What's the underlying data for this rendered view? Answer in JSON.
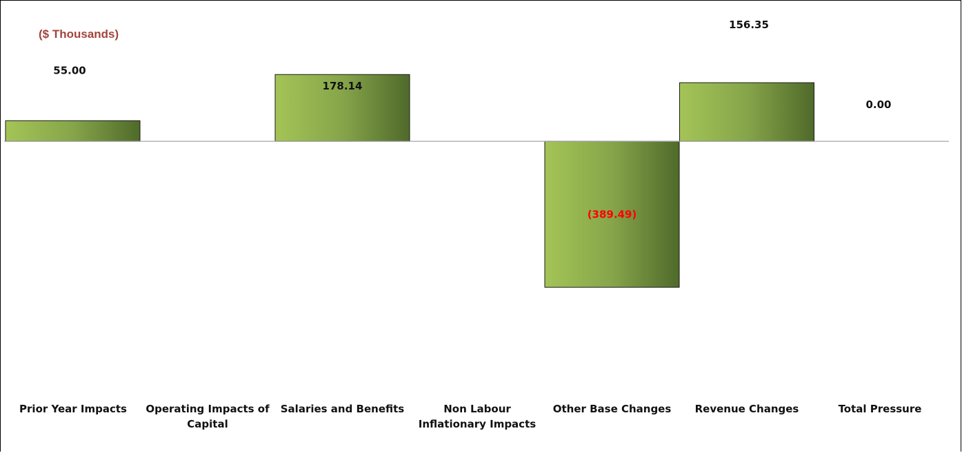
{
  "chart_data": {
    "type": "bar",
    "unit_label": "($ Thousands)",
    "categories": [
      "Prior Year Impacts",
      "Operating Impacts of Capital",
      "Salaries and Benefits",
      "Non Labour Inflationary Impacts",
      "Other Base Changes",
      "Revenue Changes",
      "Total Pressure"
    ],
    "values": [
      55.0,
      0,
      178.14,
      0,
      -389.49,
      156.35,
      0.0
    ],
    "data_labels": [
      "55.00",
      "",
      "178.14",
      "",
      "(389.49)",
      "156.35",
      "0.00"
    ],
    "ylim": [
      -580,
      320
    ],
    "grid": false,
    "legend": "none",
    "colors": {
      "bar_light": "#a4c457",
      "bar_dark": "#4f6a2a",
      "axis": "#a6a6a6",
      "unit_label": "#a0443c",
      "negative_label": "#ff0000"
    }
  }
}
